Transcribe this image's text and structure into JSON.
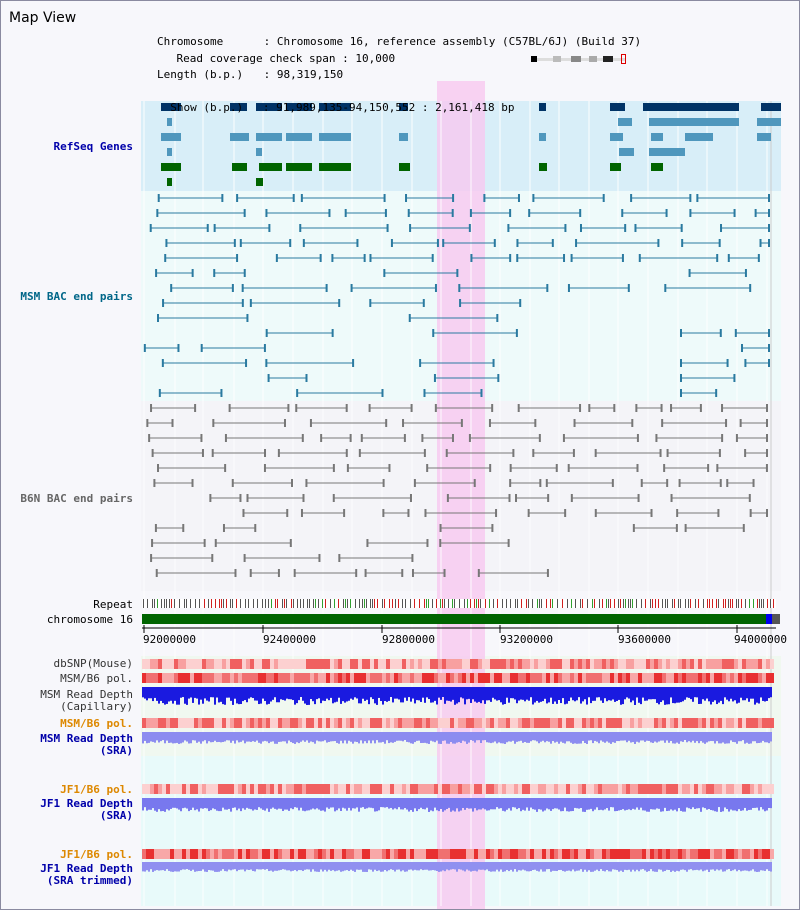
{
  "title": "Map View",
  "header": {
    "chromosome_label": "Chromosome",
    "chromosome_value": "Chromosome 16, reference assembly (C57BL/6J) (Build 37)",
    "length_label": "Length (b.p.)",
    "length_value": "98,319,150",
    "show_label": "Show (b.p.)",
    "show_value": "91,989,135-94,150,552 : 2,161,418 bp",
    "coverage_label": "Read coverage check span",
    "coverage_value": "10,000"
  },
  "tracks": {
    "refseq": "RefSeq Genes",
    "msm_bac": "MSM BAC end pairs",
    "b6n_bac": "B6N BAC end pairs",
    "repeat": "Repeat",
    "chromosome": "chromosome 16",
    "dbsnp": "dbSNP(Mouse)",
    "msm_b6_pol_1": "MSM/B6 pol.",
    "msm_depth_cap_1": "MSM Read Depth",
    "msm_depth_cap_2": "(Capillary)",
    "msm_b6_pol_2": "MSM/B6 pol.",
    "msm_depth_sra_1": "MSM Read Depth",
    "msm_depth_sra_2": "(SRA)",
    "jf1_pol_1": "JF1/B6 pol.",
    "jf1_depth_sra_1": "JF1 Read Depth",
    "jf1_depth_sra_2": "(SRA)",
    "jf1_pol_2": "JF1/B6 pol.",
    "jf1_depth_trim_1": "JF1 Read Depth",
    "jf1_depth_trim_2": "(SRA trimmed)"
  },
  "axis": {
    "ticks": [
      "92000000",
      "92400000",
      "92800000",
      "93200000",
      "93600000",
      "94000000"
    ]
  },
  "colors": {
    "refseq_label": "#0000aa",
    "msm_label": "#006688",
    "b6n_label": "#666666",
    "orange_label": "#dd8800",
    "blue_label": "#0000aa",
    "highlight": "#f8c8f0",
    "chromosome_bar": "#006400"
  }
}
